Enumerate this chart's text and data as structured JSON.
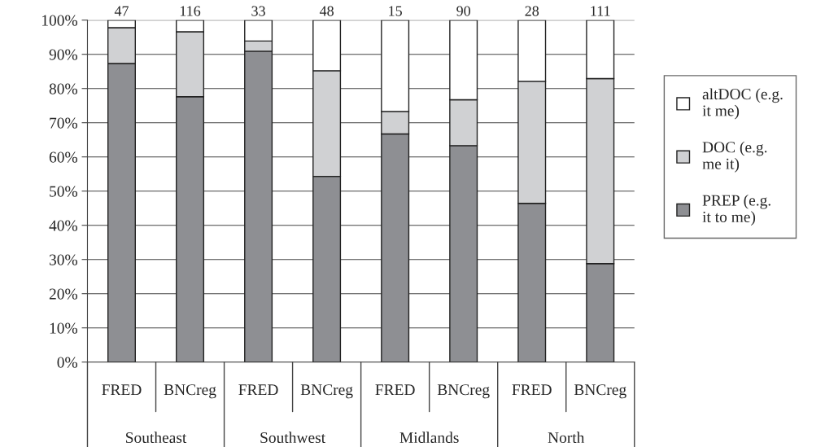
{
  "chart_data": {
    "type": "bar",
    "stacked": true,
    "categories": [
      "FRED",
      "BNCreg",
      "FRED",
      "BNCreg",
      "FRED",
      "BNCreg",
      "FRED",
      "BNCreg"
    ],
    "series": [
      {
        "name": "PREP (e.g. it to me)",
        "color": "#8e8f93",
        "values": [
          87.3,
          77.6,
          90.9,
          54.3,
          66.7,
          63.3,
          46.4,
          28.8
        ]
      },
      {
        "name": "DOC (e.g. me it)",
        "color": "#d0d1d3",
        "values": [
          10.5,
          19.0,
          3.0,
          30.9,
          6.6,
          13.4,
          35.7,
          54.1
        ]
      },
      {
        "name": "altDOC (e.g. it me)",
        "color": "#ffffff",
        "values": [
          2.2,
          3.4,
          6.1,
          14.8,
          26.7,
          23.3,
          17.9,
          17.1
        ]
      }
    ],
    "annotations": [
      "Southeast",
      "Southwest",
      "Midlands",
      "North",
      {
        "text": "47",
        "y": 100
      },
      {
        "text": "116",
        "y": 100
      },
      {
        "text": "33",
        "y": 100
      },
      {
        "text": "48",
        "y": 100
      },
      {
        "text": "15",
        "y": 100
      },
      {
        "text": "90",
        "y": 100
      },
      {
        "text": "28",
        "y": 100
      },
      {
        "text": "111",
        "y": 100
      }
    ],
    "ylim": [
      0,
      100
    ],
    "yticks": [
      {
        "value": 0,
        "label": "0%"
      },
      {
        "value": 10,
        "label": "10%"
      },
      {
        "value": 20,
        "label": "20%"
      },
      {
        "value": 30,
        "label": "30%"
      },
      {
        "value": 40,
        "label": "40%"
      },
      {
        "value": 50,
        "label": "50%"
      },
      {
        "value": 60,
        "label": "60%"
      },
      {
        "value": 70,
        "label": "70%"
      },
      {
        "value": 80,
        "label": "80%"
      },
      {
        "value": 90,
        "label": "90%"
      },
      {
        "value": 100,
        "label": "100%"
      }
    ],
    "grid": "y",
    "legend": "right"
  }
}
